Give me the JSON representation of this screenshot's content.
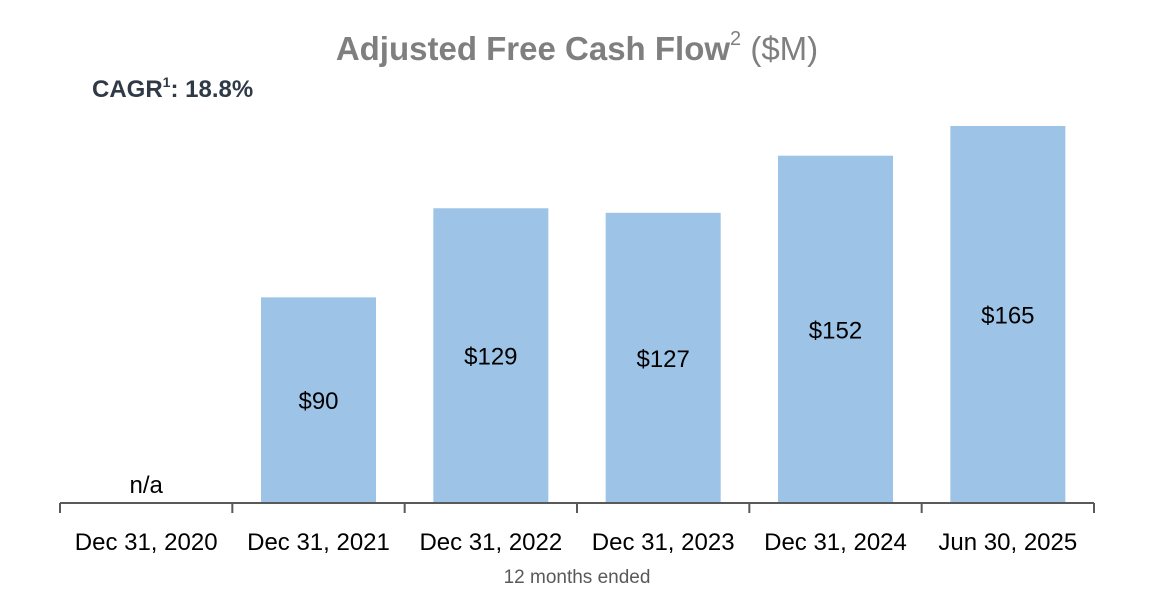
{
  "title": {
    "main": "Adjusted Free Cash Flow",
    "sup": "2",
    "unit": "($M)"
  },
  "cagr": {
    "label": "CAGR",
    "sup": "1",
    "value": ": 18.8%"
  },
  "footnote": "12 months ended",
  "colors": {
    "bar": "#9dc3e6",
    "axis": "#595959",
    "title": "#7f7f7f",
    "text": "#000000"
  },
  "chart_data": {
    "type": "bar",
    "title": "Adjusted Free Cash Flow",
    "ylabel": "",
    "xlabel": "12 months ended",
    "categories": [
      "Dec 31, 2020",
      "Dec 31, 2021",
      "Dec 31, 2022",
      "Dec 31, 2023",
      "Dec 31, 2024",
      "Jun 30, 2025"
    ],
    "values": [
      null,
      90,
      129,
      127,
      152,
      165
    ],
    "data_labels": [
      "n/a",
      "$90",
      "$129",
      "$127",
      "$152",
      "$165"
    ],
    "ylim": [
      0,
      165
    ],
    "grid": false
  }
}
